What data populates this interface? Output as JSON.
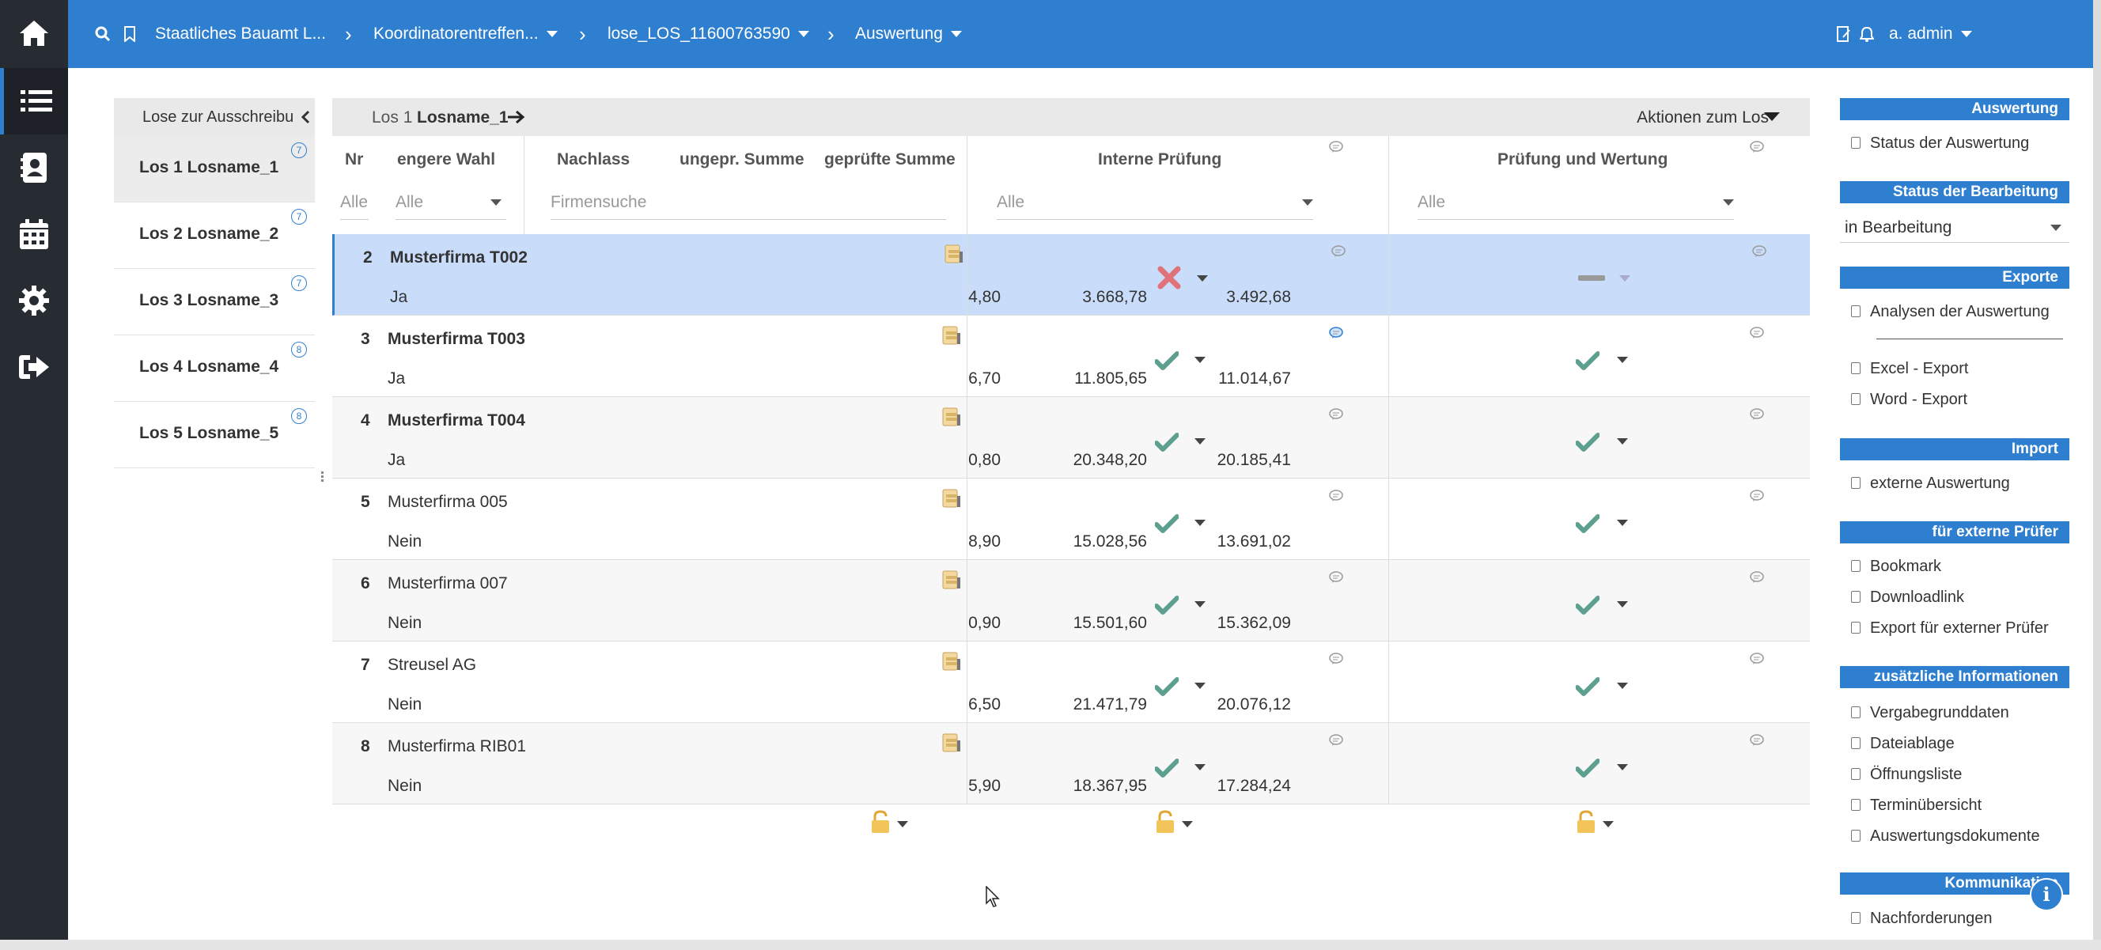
{
  "topbar": {
    "breadcrumbs": [
      {
        "label": "Staatliches Bauamt L...",
        "dropdown": false
      },
      {
        "label": "Koordinatorentreffen...",
        "dropdown": true
      },
      {
        "label": "lose_LOS_11600763590",
        "dropdown": true
      },
      {
        "label": "Auswertung",
        "dropdown": true
      }
    ],
    "user": "a. admin"
  },
  "lose_panel": {
    "header": "Lose zur Ausschreibung",
    "items": [
      {
        "label": "Los 1 Losname_1",
        "badge": "7"
      },
      {
        "label": "Los 2 Losname_2",
        "badge": "7"
      },
      {
        "label": "Los 3 Losname_3",
        "badge": "7"
      },
      {
        "label": "Los 4 Losname_4",
        "badge": "8"
      },
      {
        "label": "Los 5 Losname_5",
        "badge": "8"
      }
    ]
  },
  "los_bar": {
    "prefix": "Los 1",
    "name": "Losname_1",
    "actions": "Aktionen zum Los"
  },
  "table": {
    "headers": {
      "nr": "Nr",
      "wahl": "engere Wahl",
      "nachlass": "Nachlass",
      "ungepr": "ungepr. Summe",
      "gepr": "geprüfte Summe",
      "intern": "Interne Prüfung",
      "pruefung": "Prüfung und Wertung"
    },
    "filters": {
      "nr": "Alle",
      "wahl": "Alle",
      "firma": "Firmensuche",
      "intern": "Alle",
      "pruefung": "Alle"
    },
    "rows": [
      {
        "nr": "2",
        "firma": "Musterfirma T002",
        "bold": true,
        "wahl": "Ja",
        "nachlass": "4,80",
        "ungepr": "3.668,78",
        "gepr": "3.492,68",
        "intern": "cross",
        "pruefung": "dash"
      },
      {
        "nr": "3",
        "firma": "Musterfirma T003",
        "bold": true,
        "wahl": "Ja",
        "nachlass": "6,70",
        "ungepr": "11.805,65",
        "gepr": "11.014,67",
        "intern": "check",
        "pruefung": "check"
      },
      {
        "nr": "4",
        "firma": "Musterfirma T004",
        "bold": true,
        "wahl": "Ja",
        "nachlass": "0,80",
        "ungepr": "20.348,20",
        "gepr": "20.185,41",
        "intern": "check",
        "pruefung": "check"
      },
      {
        "nr": "5",
        "firma": "Musterfirma 005",
        "bold": false,
        "wahl": "Nein",
        "nachlass": "8,90",
        "ungepr": "15.028,56",
        "gepr": "13.691,02",
        "intern": "check",
        "pruefung": "check"
      },
      {
        "nr": "6",
        "firma": "Musterfirma 007",
        "bold": false,
        "wahl": "Nein",
        "nachlass": "0,90",
        "ungepr": "15.501,60",
        "gepr": "15.362,09",
        "intern": "check",
        "pruefung": "check"
      },
      {
        "nr": "7",
        "firma": "Streusel AG",
        "bold": false,
        "wahl": "Nein",
        "nachlass": "6,50",
        "ungepr": "21.471,79",
        "gepr": "20.076,12",
        "intern": "check",
        "pruefung": "check"
      },
      {
        "nr": "8",
        "firma": "Musterfirma RIB01",
        "bold": false,
        "wahl": "Nein",
        "nachlass": "5,90",
        "ungepr": "18.367,95",
        "gepr": "17.284,24",
        "intern": "check",
        "pruefung": "check"
      }
    ]
  },
  "right_panel": {
    "auswertung": {
      "title": "Auswertung",
      "items": [
        "Status der Auswertung"
      ]
    },
    "status": {
      "title": "Status der Bearbeitung",
      "value": "in Bearbeitung"
    },
    "exporte": {
      "title": "Exporte",
      "items": [
        "Analysen der Auswertung",
        "Excel - Export",
        "Word - Export"
      ]
    },
    "import": {
      "title": "Import",
      "items": [
        "externe Auswertung"
      ]
    },
    "extern": {
      "title": "für externe Prüfer",
      "items": [
        "Bookmark",
        "Downloadlink",
        "Export für externer Prüfer"
      ]
    },
    "info": {
      "title": "zusätzliche Informationen",
      "items": [
        "Vergabegrunddaten",
        "Dateiablage",
        "Öffnungsliste",
        "Terminübersicht",
        "Auswertungsdokumente"
      ]
    },
    "komm": {
      "title": "Kommunikation",
      "items": [
        "Nachforderungen"
      ]
    }
  },
  "colors": {
    "primary": "#2f7fd1",
    "rail": "#272c33",
    "selected_row": "#c9ddfb",
    "check": "#5ea08f",
    "cross": "#e0737a",
    "lock": "#e8b84a"
  }
}
